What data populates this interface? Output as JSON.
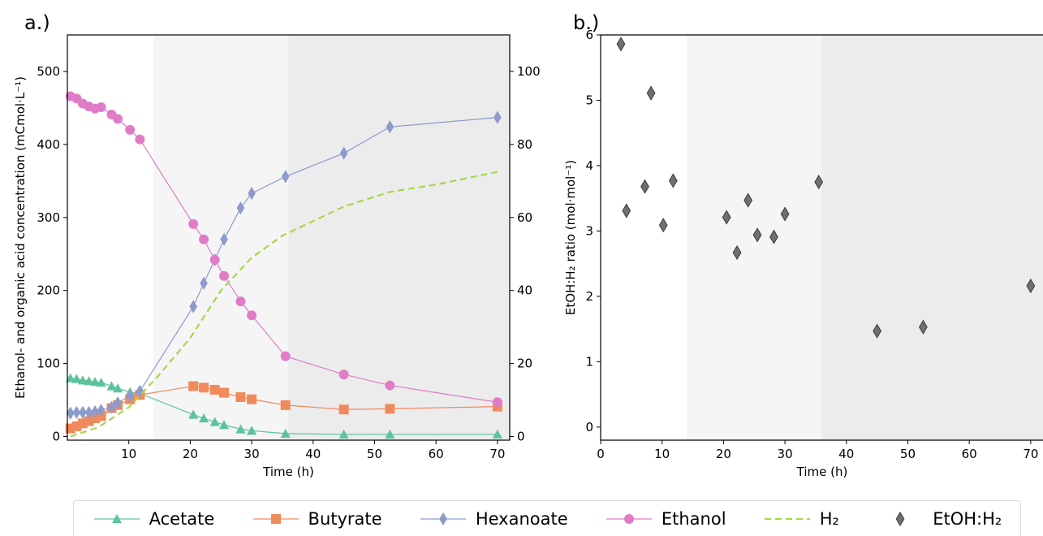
{
  "chart_data": [
    {
      "type": "line",
      "panel_label": "a.)",
      "xlabel": "Time (h)",
      "ylabel_left": "Ethanol- and organic acid concentration (mCmol·L⁻¹)",
      "ylabel_right": "",
      "xlim": [
        0,
        72
      ],
      "ylim_left": [
        -5,
        550
      ],
      "ylim_right": [
        -1,
        110
      ],
      "x_ticks": [
        "10",
        "20",
        "30",
        "40",
        "50",
        "60",
        "70"
      ],
      "y_ticks_left": [
        "0",
        "100",
        "200",
        "300",
        "400",
        "500"
      ],
      "y_ticks_right": [
        "0",
        "20",
        "40",
        "60",
        "80",
        "100"
      ],
      "shaded_regions": [
        {
          "from": 14,
          "to": 36,
          "color": "#f5f5f5"
        },
        {
          "from": 36,
          "to": 72,
          "color": "#ececec"
        }
      ],
      "series": [
        {
          "name": "Acetate",
          "marker": "triangle",
          "color": "#5cc39b",
          "axis": "left",
          "x": [
            0.5,
            1.5,
            2.5,
            3.5,
            4.5,
            5.5,
            7.2,
            8.2,
            10.2,
            11.8,
            20.5,
            22.2,
            24.0,
            25.5,
            28.2,
            30.0,
            35.5,
            45.0,
            52.5,
            70.0
          ],
          "y": [
            80,
            79,
            77,
            76,
            75,
            74,
            69,
            66,
            61,
            59,
            30,
            25,
            20,
            16,
            10,
            8,
            4,
            3,
            3,
            3
          ]
        },
        {
          "name": "Butyrate",
          "marker": "square",
          "color": "#f08a5d",
          "axis": "left",
          "x": [
            0.5,
            1.5,
            2.5,
            3.5,
            4.5,
            5.5,
            7.2,
            8.2,
            10.2,
            11.8,
            20.5,
            22.2,
            24.0,
            25.5,
            28.2,
            30.0,
            35.5,
            45.0,
            52.5,
            70.0
          ],
          "y": [
            11,
            14,
            18,
            21,
            25,
            28,
            39,
            43,
            51,
            57,
            69,
            67,
            64,
            60,
            54,
            51,
            43,
            37,
            38,
            41
          ]
        },
        {
          "name": "Hexanoate",
          "marker": "diamond",
          "color": "#8c9bcc",
          "axis": "left",
          "x": [
            0.5,
            1.5,
            2.5,
            3.5,
            4.5,
            5.5,
            7.2,
            8.2,
            10.2,
            11.8,
            20.5,
            22.2,
            24.0,
            25.5,
            28.2,
            30.0,
            35.5,
            45.0,
            52.5,
            70.0
          ],
          "y": [
            32,
            33,
            33,
            33,
            34,
            36,
            40,
            46,
            56,
            62,
            178,
            210,
            242,
            270,
            313,
            333,
            356,
            388,
            424,
            437
          ]
        },
        {
          "name": "Ethanol",
          "marker": "circle",
          "color": "#e07cc7",
          "axis": "left",
          "x": [
            0.5,
            1.5,
            2.5,
            3.5,
            4.5,
            5.5,
            7.2,
            8.2,
            10.2,
            11.8,
            20.5,
            22.2,
            24.0,
            25.5,
            28.2,
            30.0,
            35.5,
            45.0,
            52.5,
            70.0
          ],
          "y": [
            466,
            463,
            456,
            452,
            449,
            451,
            441,
            435,
            420,
            407,
            291,
            270,
            242,
            220,
            185,
            166,
            110,
            85,
            70,
            47
          ]
        },
        {
          "name": "H₂",
          "marker": "none",
          "line": "dashed",
          "color": "#a6d64a",
          "axis": "right",
          "x": [
            0.5,
            5,
            10,
            15,
            20,
            25,
            30,
            35,
            40,
            45,
            52.5,
            60,
            70
          ],
          "y": [
            0,
            2.5,
            8,
            17,
            27,
            40,
            49,
            55,
            59,
            63,
            67,
            69,
            72.5
          ]
        }
      ]
    },
    {
      "type": "scatter",
      "panel_label": "b.)",
      "xlabel": "Time (h)",
      "ylabel": "EtOH:H₂ ratio (mol·mol⁻¹)",
      "xlim": [
        0,
        72
      ],
      "ylim": [
        -0.2,
        6
      ],
      "x_ticks": [
        "0",
        "10",
        "20",
        "30",
        "40",
        "50",
        "60",
        "70"
      ],
      "y_ticks": [
        "0",
        "1",
        "2",
        "3",
        "4",
        "5",
        "6"
      ],
      "shaded_regions": [
        {
          "from": 14,
          "to": 36,
          "color": "#f5f5f5"
        },
        {
          "from": 36,
          "to": 72,
          "color": "#ececec"
        }
      ],
      "series": [
        {
          "name": "EtOH:H₂",
          "marker": "diamond",
          "color": "#707070",
          "x": [
            3.3,
            4.2,
            7.2,
            8.2,
            10.2,
            11.8,
            20.5,
            22.2,
            24.0,
            25.5,
            28.2,
            30.0,
            35.5,
            45.0,
            52.5,
            70.0
          ],
          "y": [
            5.86,
            3.31,
            3.68,
            5.11,
            3.09,
            3.77,
            3.21,
            2.67,
            3.47,
            2.94,
            2.91,
            3.26,
            3.75,
            1.47,
            1.53,
            2.16
          ]
        }
      ]
    }
  ],
  "legend": [
    {
      "label": "Acetate",
      "marker": "triangle",
      "color": "#5cc39b",
      "line": "solid"
    },
    {
      "label": "Butyrate",
      "marker": "square",
      "color": "#f08a5d",
      "line": "solid"
    },
    {
      "label": "Hexanoate",
      "marker": "diamond",
      "color": "#8c9bcc",
      "line": "solid"
    },
    {
      "label": "Ethanol",
      "marker": "circle",
      "color": "#e07cc7",
      "line": "solid"
    },
    {
      "label": "H₂",
      "marker": "none",
      "color": "#a6d64a",
      "line": "dashed"
    },
    {
      "label": "EtOH:H₂",
      "marker": "diamond",
      "color": "#707070",
      "line": "none"
    }
  ]
}
